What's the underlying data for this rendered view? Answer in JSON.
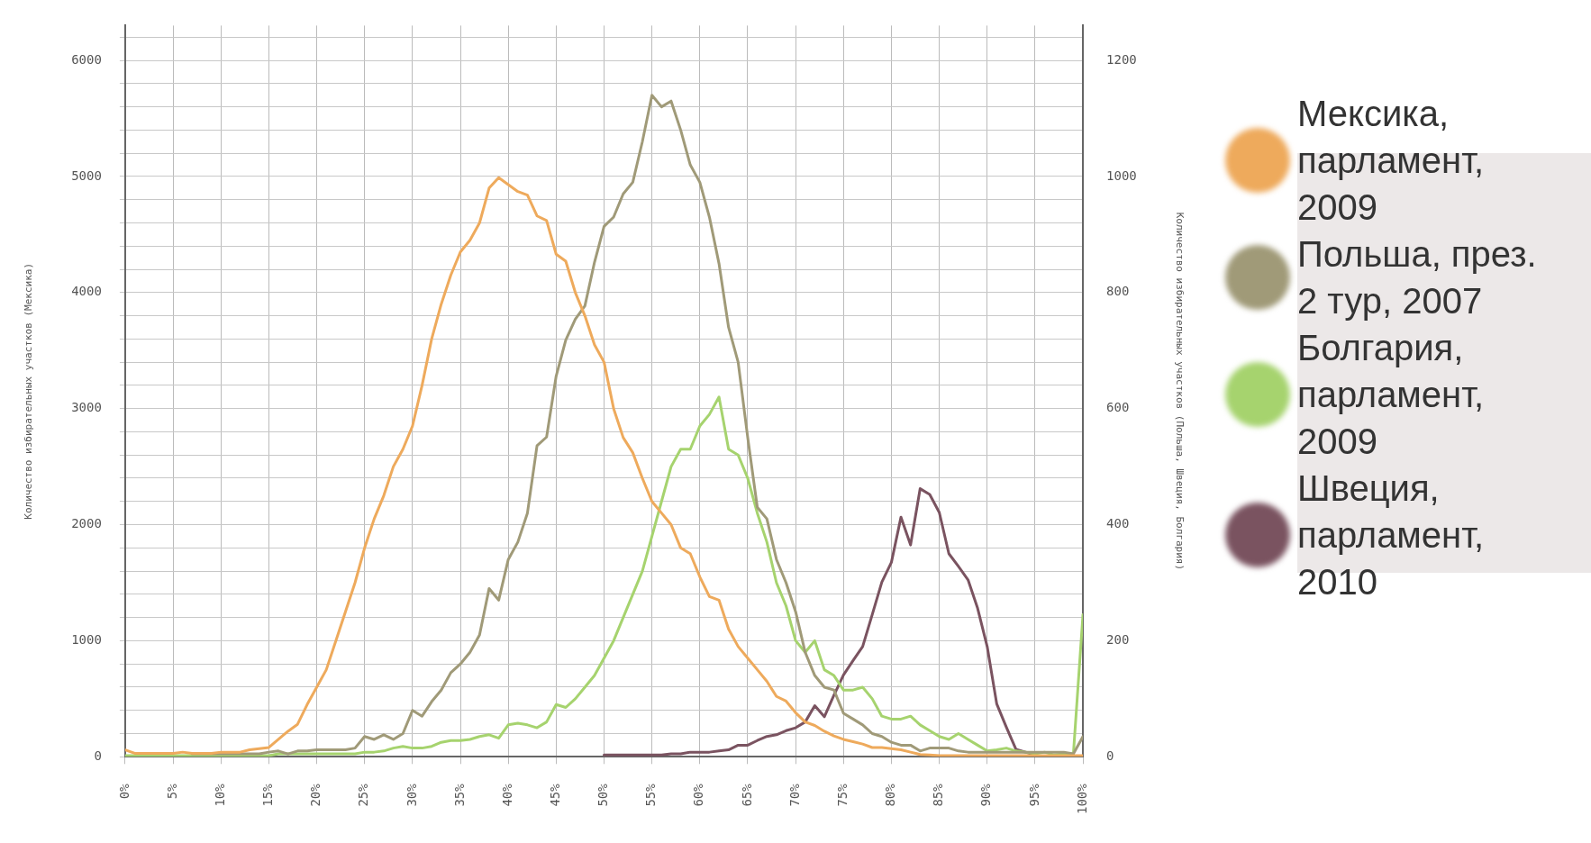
{
  "chart_data": {
    "type": "line",
    "ylabel": "Количество избирательных участков (Мексика)",
    "y2label": "Количество избирательных участков (Польша, Швеция, Болгария)",
    "xlim": [
      0,
      100
    ],
    "xticks": [
      {
        "value": 0,
        "label": "0%"
      },
      {
        "value": 5,
        "label": "5%"
      },
      {
        "value": 10,
        "label": "10%"
      },
      {
        "value": 15,
        "label": "15%"
      },
      {
        "value": 20,
        "label": "20%"
      },
      {
        "value": 25,
        "label": "25%"
      },
      {
        "value": 30,
        "label": "30%"
      },
      {
        "value": 35,
        "label": "35%"
      },
      {
        "value": 40,
        "label": "40%"
      },
      {
        "value": 45,
        "label": "45%"
      },
      {
        "value": 50,
        "label": "50%"
      },
      {
        "value": 55,
        "label": "55%"
      },
      {
        "value": 60,
        "label": "60%"
      },
      {
        "value": 65,
        "label": "65%"
      },
      {
        "value": 70,
        "label": "70%"
      },
      {
        "value": 75,
        "label": "75%"
      },
      {
        "value": 80,
        "label": "80%"
      },
      {
        "value": 85,
        "label": "85%"
      },
      {
        "value": 90,
        "label": "90%"
      },
      {
        "value": 95,
        "label": "95%"
      },
      {
        "value": 100,
        "label": "100%"
      }
    ],
    "ylim": [
      0,
      6300
    ],
    "yticks": [
      0,
      {
        "value": 200,
        "label": null
      },
      {
        "value": 400,
        "label": null
      },
      {
        "value": 600,
        "label": null
      },
      {
        "value": 800,
        "label": null
      },
      1000,
      {
        "value": 1200,
        "label": null
      },
      {
        "value": 1400,
        "label": null
      },
      {
        "value": 1600,
        "label": null
      },
      {
        "value": 1800,
        "label": null
      },
      2000,
      {
        "value": 2200,
        "label": null
      },
      {
        "value": 2400,
        "label": null
      },
      {
        "value": 2600,
        "label": null
      },
      {
        "value": 2800,
        "label": null
      },
      3000,
      {
        "value": 3200,
        "label": null
      },
      {
        "value": 3400,
        "label": null
      },
      {
        "value": 3600,
        "label": null
      },
      {
        "value": 3800,
        "label": null
      },
      4000,
      {
        "value": 4200,
        "label": null
      },
      {
        "value": 4400,
        "label": null
      },
      {
        "value": 4600,
        "label": null
      },
      {
        "value": 4800,
        "label": null
      },
      5000,
      {
        "value": 5200,
        "label": null
      },
      {
        "value": 5400,
        "label": null
      },
      {
        "value": 5600,
        "label": null
      },
      {
        "value": 5800,
        "label": null
      },
      6000,
      {
        "value": 6200,
        "label": null
      }
    ],
    "y2lim": [
      0,
      1260
    ],
    "y2ticks": [
      0,
      200,
      400,
      600,
      800,
      1000,
      1200
    ],
    "grid": true,
    "legend": "right",
    "marker": "none",
    "line_style": "solid",
    "series": [
      {
        "name": " Мексика, парламент, 2009",
        "color": "#eeaa5c",
        "x": [
          0,
          1,
          2,
          3,
          4,
          5,
          6,
          7,
          8,
          9,
          10,
          11,
          12,
          13,
          14,
          15,
          16,
          17,
          18,
          19,
          20,
          21,
          22,
          23,
          24,
          25,
          26,
          27,
          28,
          29,
          30,
          31,
          32,
          33,
          34,
          35,
          36,
          37,
          38,
          39,
          40,
          41,
          42,
          43,
          44,
          45,
          46,
          47,
          48,
          49,
          50,
          51,
          52,
          53,
          54,
          55,
          56,
          57,
          58,
          59,
          60,
          61,
          62,
          63,
          64,
          65,
          66,
          67,
          68,
          69,
          70,
          71,
          72,
          73,
          74,
          75,
          76,
          77,
          78,
          79,
          80,
          81,
          82,
          83,
          84,
          85,
          86,
          87,
          88,
          89,
          90,
          91,
          92,
          93,
          94,
          95,
          96,
          97,
          98,
          99,
          100
        ],
        "values": [
          60,
          30,
          30,
          30,
          30,
          30,
          40,
          30,
          30,
          30,
          40,
          40,
          40,
          60,
          70,
          80,
          150,
          220,
          280,
          450,
          600,
          750,
          1000,
          1250,
          1500,
          1800,
          2050,
          2250,
          2500,
          2650,
          2850,
          3200,
          3600,
          3900,
          4150,
          4350,
          4450,
          4600,
          4900,
          4990,
          4930,
          4870,
          4840,
          4660,
          4620,
          4330,
          4270,
          4000,
          3800,
          3550,
          3400,
          3000,
          2750,
          2620,
          2400,
          2200,
          2100,
          2000,
          1800,
          1750,
          1550,
          1380,
          1350,
          1100,
          950,
          850,
          750,
          650,
          520,
          480,
          380,
          300,
          270,
          220,
          180,
          150,
          130,
          110,
          80,
          80,
          70,
          60,
          40,
          20,
          15,
          10,
          10,
          10,
          10,
          10,
          10,
          10,
          10,
          10,
          10,
          10,
          10,
          10,
          10,
          10,
          10
        ]
      },
      {
        "name": "Польша, през. 2 тур, 2007",
        "color": "#a09a78",
        "axis": "y2",
        "x": [
          7,
          8,
          9,
          10,
          11,
          12,
          13,
          14,
          15,
          16,
          17,
          18,
          19,
          20,
          21,
          22,
          23,
          24,
          25,
          26,
          27,
          28,
          29,
          30,
          31,
          32,
          33,
          34,
          35,
          36,
          37,
          38,
          39,
          40,
          41,
          42,
          43,
          44,
          45,
          46,
          47,
          48,
          49,
          50,
          51,
          52,
          53,
          54,
          55,
          56,
          57,
          58,
          59,
          60,
          61,
          62,
          63,
          64,
          65,
          66,
          67,
          68,
          69,
          70,
          71,
          72,
          73,
          74,
          75,
          76,
          77,
          78,
          79,
          80,
          81,
          82,
          83,
          84,
          85,
          86,
          87,
          88,
          89,
          90,
          91,
          92,
          93,
          94,
          95,
          96,
          97,
          98,
          99,
          100
        ],
        "values": [
          5,
          5,
          5,
          5,
          5,
          5,
          5,
          5,
          8,
          10,
          5,
          10,
          10,
          12,
          12,
          12,
          12,
          15,
          35,
          30,
          38,
          30,
          40,
          80,
          70,
          95,
          115,
          145,
          160,
          180,
          210,
          290,
          270,
          340,
          370,
          420,
          536,
          551,
          656,
          718,
          754,
          777,
          852,
          914,
          930,
          970,
          990,
          1060,
          1140,
          1120,
          1130,
          1080,
          1020,
          990,
          930,
          850,
          740,
          680,
          550,
          430,
          410,
          340,
          300,
          250,
          180,
          140,
          120,
          115,
          75,
          65,
          55,
          40,
          35,
          25,
          20,
          20,
          10,
          15,
          15,
          15,
          10,
          8,
          8,
          8,
          8,
          8,
          8,
          8,
          8,
          8,
          8,
          8,
          5,
          35
        ]
      },
      {
        "name": "Болгария, парламент, 2009",
        "color": "#a6d36e",
        "axis": "y2",
        "x": [
          0,
          1,
          2,
          3,
          4,
          5,
          6,
          7,
          8,
          9,
          10,
          11,
          12,
          13,
          14,
          15,
          16,
          17,
          18,
          19,
          20,
          21,
          22,
          23,
          24,
          25,
          26,
          27,
          28,
          29,
          30,
          31,
          32,
          33,
          34,
          35,
          36,
          37,
          38,
          39,
          40,
          41,
          42,
          43,
          44,
          45,
          46,
          47,
          48,
          49,
          50,
          51,
          52,
          53,
          54,
          55,
          56,
          57,
          58,
          59,
          60,
          61,
          62,
          63,
          64,
          65,
          66,
          67,
          68,
          69,
          70,
          71,
          72,
          73,
          74,
          75,
          76,
          77,
          78,
          79,
          80,
          81,
          82,
          83,
          84,
          85,
          86,
          87,
          88,
          89,
          90,
          91,
          92,
          93,
          94,
          95,
          96,
          97,
          98,
          99,
          100
        ],
        "values": [
          2,
          2,
          2,
          2,
          2,
          2,
          2,
          2,
          2,
          2,
          2,
          2,
          2,
          2,
          2,
          2,
          5,
          5,
          5,
          5,
          5,
          5,
          5,
          5,
          5,
          8,
          8,
          10,
          15,
          18,
          15,
          15,
          18,
          25,
          28,
          28,
          30,
          35,
          38,
          32,
          55,
          58,
          55,
          50,
          60,
          90,
          85,
          100,
          120,
          140,
          170,
          200,
          240,
          280,
          320,
          380,
          440,
          500,
          530,
          530,
          570,
          590,
          620,
          530,
          520,
          480,
          420,
          370,
          300,
          260,
          200,
          180,
          200,
          150,
          140,
          115,
          115,
          120,
          100,
          70,
          65,
          65,
          70,
          55,
          45,
          35,
          30,
          40,
          30,
          20,
          10,
          12,
          15,
          10,
          8,
          5,
          8,
          3,
          5,
          5,
          245
        ]
      },
      {
        "name": "Швеция, парламент, 2010",
        "color": "#7a5360",
        "axis": "y2",
        "x": [
          50,
          51,
          52,
          53,
          54,
          55,
          56,
          57,
          58,
          59,
          60,
          61,
          62,
          63,
          64,
          65,
          66,
          67,
          68,
          69,
          70,
          71,
          72,
          73,
          74,
          75,
          76,
          77,
          78,
          79,
          80,
          81,
          82,
          83,
          84,
          85,
          86,
          87,
          88,
          89,
          90,
          91,
          92,
          93,
          94,
          95
        ],
        "values": [
          3,
          3,
          3,
          3,
          3,
          3,
          3,
          5,
          5,
          8,
          8,
          8,
          10,
          12,
          20,
          20,
          28,
          35,
          38,
          45,
          50,
          60,
          88,
          69,
          106,
          141,
          166,
          190,
          245,
          301,
          335,
          413,
          365,
          462,
          452,
          421,
          350,
          328,
          305,
          256,
          190,
          91,
          51,
          13,
          8,
          3
        ]
      }
    ]
  }
}
